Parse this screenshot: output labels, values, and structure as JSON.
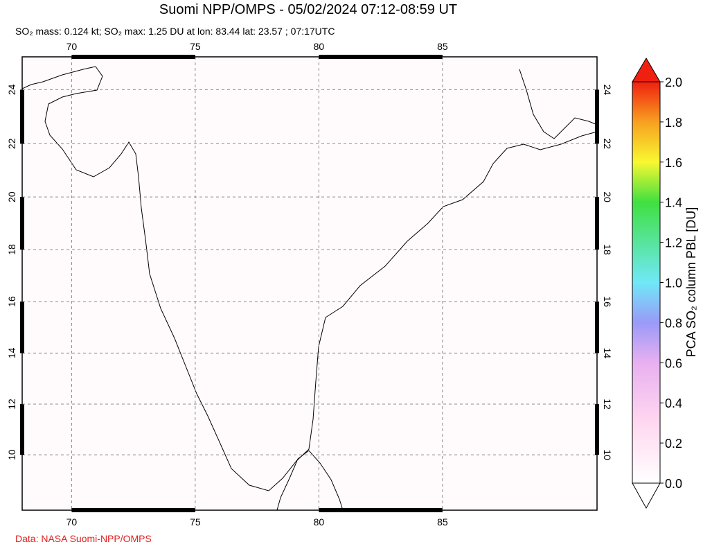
{
  "header": {
    "title": "Suomi NPP/OMPS - 05/02/2024 07:12-08:59 UT",
    "subtitle": "SO₂ mass: 0.124 kt; SO₂ max: 1.25 DU at lon: 83.44 lat: 23.57 ; 07:17UTC"
  },
  "map": {
    "lonlim": [
      68,
      91.25
    ],
    "latlim": [
      7.8,
      25.2
    ],
    "lonticks": [
      70,
      75,
      80,
      85
    ],
    "latticks": [
      10,
      12,
      14,
      16,
      18,
      20,
      22,
      24
    ]
  },
  "colorbar": {
    "label": "PCA SO₂ column PBL [DU]",
    "lim": [
      0,
      2
    ],
    "ticks": [
      {
        "value": 0,
        "label": "0.0"
      },
      {
        "value": 0.2,
        "label": "0.2"
      },
      {
        "value": 0.4,
        "label": "0.4"
      },
      {
        "value": 0.6,
        "label": "0.6"
      },
      {
        "value": 0.8,
        "label": "0.8"
      },
      {
        "value": 1,
        "label": "1.0"
      },
      {
        "value": 1.2,
        "label": "1.2"
      },
      {
        "value": 1.4,
        "label": "1.4"
      },
      {
        "value": 1.6,
        "label": "1.6"
      },
      {
        "value": 1.8,
        "label": "1.8"
      },
      {
        "value": 2,
        "label": "2.0"
      }
    ]
  },
  "footer": {
    "credit": "Data: NASA Suomi-NPP/OMPS"
  }
}
